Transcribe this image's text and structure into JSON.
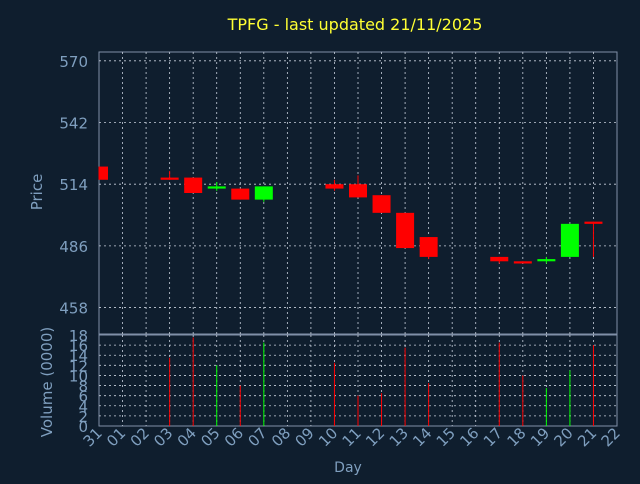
{
  "colors": {
    "background": "#0f1e2e",
    "frame": "#8090a8",
    "grid": "#c8d0dc",
    "title": "#ffff33",
    "axis_text": "#7f9fbf",
    "up": "#00ff00",
    "down": "#ff0000"
  },
  "chart_data": [
    {
      "type": "candlestick",
      "title": "TPFG - last updated 21/11/2025",
      "ylabel": "Price",
      "ylim": [
        446,
        574
      ],
      "yticks": [
        458,
        486,
        514,
        542,
        570
      ],
      "grid": true,
      "x": [
        "31",
        "01",
        "02",
        "03",
        "04",
        "05",
        "06",
        "07",
        "08",
        "09",
        "10",
        "11",
        "12",
        "13",
        "14",
        "15",
        "16",
        "17",
        "18",
        "19",
        "20",
        "21",
        "22"
      ],
      "candles": [
        {
          "day": "31",
          "open": 522,
          "high": 522,
          "low": 516,
          "close": 516
        },
        {
          "day": "03",
          "open": 517,
          "high": 520,
          "low": 516,
          "close": 516
        },
        {
          "day": "04",
          "open": 517,
          "high": 517,
          "low": 510,
          "close": 510
        },
        {
          "day": "05",
          "open": 512,
          "high": 515,
          "low": 511,
          "close": 513
        },
        {
          "day": "06",
          "open": 512,
          "high": 512,
          "low": 507,
          "close": 507
        },
        {
          "day": "07",
          "open": 507,
          "high": 513,
          "low": 506,
          "close": 513
        },
        {
          "day": "10",
          "open": 514,
          "high": 516,
          "low": 511,
          "close": 512
        },
        {
          "day": "11",
          "open": 514,
          "high": 518,
          "low": 508,
          "close": 508
        },
        {
          "day": "12",
          "open": 509,
          "high": 509,
          "low": 501,
          "close": 501
        },
        {
          "day": "13",
          "open": 501,
          "high": 501,
          "low": 485,
          "close": 485
        },
        {
          "day": "14",
          "open": 490,
          "high": 490,
          "low": 480,
          "close": 481
        },
        {
          "day": "17",
          "open": 481,
          "high": 481,
          "low": 478,
          "close": 479
        },
        {
          "day": "18",
          "open": 479,
          "high": 479,
          "low": 478,
          "close": 478
        },
        {
          "day": "19",
          "open": 479,
          "high": 481,
          "low": 478,
          "close": 480
        },
        {
          "day": "20",
          "open": 481,
          "high": 496,
          "low": 481,
          "close": 496
        },
        {
          "day": "21",
          "open": 497,
          "high": 497,
          "low": 481,
          "close": 496
        }
      ]
    },
    {
      "type": "bar",
      "xlabel": "Day",
      "ylabel": "Volume (0000)",
      "ylim": [
        0,
        18
      ],
      "yticks": [
        0,
        2,
        4,
        6,
        8,
        10,
        12,
        14,
        16,
        18
      ],
      "grid": true,
      "categories": [
        "31",
        "01",
        "02",
        "03",
        "04",
        "05",
        "06",
        "07",
        "08",
        "09",
        "10",
        "11",
        "12",
        "13",
        "14",
        "15",
        "16",
        "17",
        "18",
        "19",
        "20",
        "21",
        "22"
      ],
      "bars": [
        {
          "day": "03",
          "value": 13.5,
          "dir": "down"
        },
        {
          "day": "04",
          "value": 17.5,
          "dir": "down"
        },
        {
          "day": "05",
          "value": 12,
          "dir": "up"
        },
        {
          "day": "06",
          "value": 8,
          "dir": "down"
        },
        {
          "day": "07",
          "value": 16.5,
          "dir": "up"
        },
        {
          "day": "10",
          "value": 12.5,
          "dir": "down"
        },
        {
          "day": "11",
          "value": 6,
          "dir": "down"
        },
        {
          "day": "12",
          "value": 6.5,
          "dir": "down"
        },
        {
          "day": "13",
          "value": 15.5,
          "dir": "down"
        },
        {
          "day": "14",
          "value": 8.5,
          "dir": "down"
        },
        {
          "day": "17",
          "value": 16.5,
          "dir": "down"
        },
        {
          "day": "18",
          "value": 10,
          "dir": "down"
        },
        {
          "day": "19",
          "value": 7.5,
          "dir": "up"
        },
        {
          "day": "20",
          "value": 11,
          "dir": "up"
        },
        {
          "day": "21",
          "value": 16,
          "dir": "down"
        }
      ]
    }
  ]
}
